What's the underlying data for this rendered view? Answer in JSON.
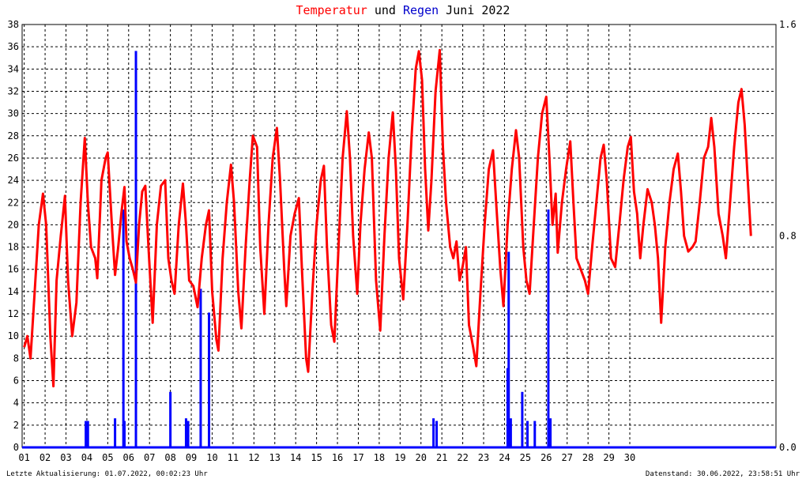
{
  "title": {
    "part1": "Temperatur",
    "part2": " und ",
    "part3": "Regen",
    "part4": " Juni 2022",
    "color_temp": "#ff0000",
    "color_rain": "#0000cc"
  },
  "footer": {
    "left": "Letzte Aktualisierung: 01.07.2022, 00:02:23 Uhr",
    "right": "Datenstand: 30.06.2022, 23:58:51 Uhr"
  },
  "chart_data": {
    "type": "line",
    "x_ticks": [
      "01",
      "02",
      "03",
      "04",
      "05",
      "06",
      "07",
      "08",
      "09",
      "10",
      "11",
      "12",
      "13",
      "14",
      "15",
      "16",
      "17",
      "18",
      "19",
      "20",
      "21",
      "22",
      "23",
      "24",
      "25",
      "26",
      "27",
      "28",
      "29",
      "30"
    ],
    "y_left": {
      "min": 0,
      "max": 38,
      "ticks": [
        0,
        2,
        4,
        6,
        8,
        10,
        12,
        14,
        16,
        18,
        20,
        22,
        24,
        26,
        28,
        30,
        32,
        34,
        36,
        38
      ]
    },
    "y_right": {
      "min": 0,
      "max": 1.6,
      "ticks": [
        "0.0",
        "0.8",
        "1.6"
      ]
    },
    "grid": true,
    "series": [
      {
        "name": "Temperatur",
        "color": "#ff0000",
        "axis": "left",
        "points": [
          [
            1.0,
            9.0
          ],
          [
            1.15,
            10.0
          ],
          [
            1.3,
            8.0
          ],
          [
            1.5,
            14
          ],
          [
            1.7,
            20
          ],
          [
            1.9,
            22.8
          ],
          [
            2.05,
            20
          ],
          [
            2.25,
            10
          ],
          [
            2.4,
            5.5
          ],
          [
            2.55,
            15
          ],
          [
            2.75,
            19
          ],
          [
            2.95,
            22.6
          ],
          [
            3.1,
            15
          ],
          [
            3.3,
            10
          ],
          [
            3.5,
            13
          ],
          [
            3.7,
            22
          ],
          [
            3.9,
            27.8
          ],
          [
            4.05,
            22
          ],
          [
            4.2,
            18
          ],
          [
            4.4,
            17
          ],
          [
            4.5,
            15.2
          ],
          [
            4.7,
            24
          ],
          [
            4.9,
            26
          ],
          [
            5.0,
            26.5
          ],
          [
            5.2,
            20
          ],
          [
            5.35,
            15.5
          ],
          [
            5.5,
            18
          ],
          [
            5.65,
            21
          ],
          [
            5.8,
            23.4
          ],
          [
            5.9,
            18.5
          ],
          [
            6.05,
            17
          ],
          [
            6.2,
            16
          ],
          [
            6.35,
            14.8
          ],
          [
            6.5,
            20
          ],
          [
            6.65,
            23
          ],
          [
            6.8,
            23.5
          ],
          [
            6.95,
            18
          ],
          [
            7.15,
            11.2
          ],
          [
            7.35,
            20
          ],
          [
            7.55,
            23.5
          ],
          [
            7.75,
            24
          ],
          [
            7.9,
            17
          ],
          [
            8.05,
            15
          ],
          [
            8.2,
            13.8
          ],
          [
            8.4,
            20
          ],
          [
            8.6,
            23.7
          ],
          [
            8.75,
            20
          ],
          [
            8.9,
            15
          ],
          [
            9.1,
            14.5
          ],
          [
            9.3,
            12.6
          ],
          [
            9.5,
            17
          ],
          [
            9.7,
            20
          ],
          [
            9.85,
            21.3
          ],
          [
            10.0,
            14
          ],
          [
            10.2,
            9.7
          ],
          [
            10.3,
            8.7
          ],
          [
            10.5,
            17
          ],
          [
            10.7,
            22
          ],
          [
            10.9,
            25.4
          ],
          [
            11.05,
            22
          ],
          [
            11.25,
            14
          ],
          [
            11.4,
            10.7
          ],
          [
            11.6,
            18
          ],
          [
            11.8,
            24
          ],
          [
            11.95,
            28
          ],
          [
            12.15,
            27
          ],
          [
            12.3,
            18
          ],
          [
            12.5,
            12
          ],
          [
            12.7,
            20
          ],
          [
            12.9,
            26
          ],
          [
            13.1,
            28.7
          ],
          [
            13.25,
            24
          ],
          [
            13.45,
            16
          ],
          [
            13.55,
            12.7
          ],
          [
            13.75,
            19
          ],
          [
            13.95,
            21
          ],
          [
            14.15,
            22.4
          ],
          [
            14.3,
            16
          ],
          [
            14.5,
            8
          ],
          [
            14.6,
            6.8
          ],
          [
            14.8,
            14
          ],
          [
            15.0,
            20
          ],
          [
            15.2,
            24
          ],
          [
            15.35,
            25.3
          ],
          [
            15.5,
            18
          ],
          [
            15.7,
            11
          ],
          [
            15.85,
            9.5
          ],
          [
            16.05,
            18
          ],
          [
            16.25,
            26
          ],
          [
            16.45,
            30.2
          ],
          [
            16.6,
            26
          ],
          [
            16.75,
            19
          ],
          [
            16.95,
            13.8
          ],
          [
            17.1,
            20
          ],
          [
            17.3,
            25
          ],
          [
            17.5,
            28.3
          ],
          [
            17.65,
            26
          ],
          [
            17.85,
            15
          ],
          [
            18.05,
            10.5
          ],
          [
            18.25,
            19
          ],
          [
            18.45,
            26
          ],
          [
            18.65,
            30.1
          ],
          [
            18.8,
            25
          ],
          [
            18.95,
            17
          ],
          [
            19.15,
            13.3
          ],
          [
            19.35,
            20
          ],
          [
            19.55,
            28
          ],
          [
            19.75,
            34
          ],
          [
            19.9,
            35.6
          ],
          [
            20.05,
            33
          ],
          [
            20.2,
            25
          ],
          [
            20.35,
            19.5
          ],
          [
            20.5,
            24
          ],
          [
            20.7,
            32
          ],
          [
            20.9,
            35.7
          ],
          [
            21.05,
            27
          ],
          [
            21.2,
            22
          ],
          [
            21.4,
            18
          ],
          [
            21.55,
            17
          ],
          [
            21.7,
            18.5
          ],
          [
            21.85,
            15
          ],
          [
            22.0,
            16.3
          ],
          [
            22.15,
            18
          ],
          [
            22.3,
            11
          ],
          [
            22.5,
            9
          ],
          [
            22.65,
            7.3
          ],
          [
            22.85,
            14
          ],
          [
            23.05,
            20
          ],
          [
            23.25,
            25
          ],
          [
            23.45,
            26.7
          ],
          [
            23.6,
            22
          ],
          [
            23.8,
            16
          ],
          [
            23.95,
            12.7
          ],
          [
            24.15,
            20
          ],
          [
            24.35,
            25
          ],
          [
            24.55,
            28.5
          ],
          [
            24.7,
            26
          ],
          [
            24.9,
            18
          ],
          [
            25.05,
            15
          ],
          [
            25.2,
            13.8
          ],
          [
            25.4,
            20
          ],
          [
            25.6,
            26
          ],
          [
            25.8,
            30
          ],
          [
            26.0,
            31.5
          ],
          [
            26.15,
            26
          ],
          [
            26.3,
            20
          ],
          [
            26.45,
            22.8
          ],
          [
            26.55,
            17.5
          ],
          [
            26.75,
            22
          ],
          [
            26.95,
            25
          ],
          [
            27.15,
            27.5
          ],
          [
            27.3,
            22
          ],
          [
            27.45,
            17
          ],
          [
            27.65,
            16
          ],
          [
            27.85,
            15
          ],
          [
            28.0,
            13.8
          ],
          [
            28.2,
            18
          ],
          [
            28.4,
            22
          ],
          [
            28.6,
            26
          ],
          [
            28.75,
            27.2
          ],
          [
            28.9,
            24
          ],
          [
            29.1,
            17
          ],
          [
            29.3,
            16.2
          ],
          [
            29.5,
            20
          ],
          [
            29.7,
            24
          ],
          [
            29.9,
            27
          ],
          [
            30.05,
            27.9
          ],
          [
            30.2,
            23
          ],
          [
            30.35,
            21
          ],
          [
            30.5,
            17
          ],
          [
            30.65,
            20
          ],
          [
            30.85,
            23.2
          ],
          [
            31.05,
            22
          ],
          [
            31.2,
            20
          ],
          [
            31.35,
            17
          ],
          [
            31.5,
            11.2
          ],
          [
            31.7,
            18
          ],
          [
            31.9,
            22
          ],
          [
            32.1,
            25
          ],
          [
            32.3,
            26.4
          ],
          [
            32.45,
            23
          ],
          [
            32.6,
            19
          ],
          [
            32.8,
            17.6
          ],
          [
            33.0,
            18
          ],
          [
            33.15,
            18.5
          ],
          [
            33.35,
            22
          ],
          [
            33.55,
            26
          ],
          [
            33.75,
            27
          ],
          [
            33.9,
            29.6
          ],
          [
            34.05,
            27
          ],
          [
            34.25,
            21
          ],
          [
            34.45,
            19
          ],
          [
            34.6,
            17
          ],
          [
            34.8,
            22
          ],
          [
            35.0,
            27
          ],
          [
            35.2,
            31
          ],
          [
            35.35,
            32.2
          ],
          [
            35.5,
            29
          ],
          [
            35.65,
            24
          ],
          [
            35.8,
            19
          ]
        ]
      },
      {
        "name": "Regen",
        "color": "#0000ff",
        "axis": "right",
        "bars": [
          [
            3.95,
            0.1
          ],
          [
            4.05,
            0.1
          ],
          [
            5.35,
            0.11
          ],
          [
            5.75,
            0.9
          ],
          [
            5.8,
            0.1
          ],
          [
            6.35,
            1.5
          ],
          [
            8.0,
            0.21
          ],
          [
            8.75,
            0.11
          ],
          [
            8.85,
            0.1
          ],
          [
            9.45,
            0.6
          ],
          [
            9.85,
            0.51
          ],
          [
            20.6,
            0.11
          ],
          [
            20.75,
            0.1
          ],
          [
            24.15,
            0.3
          ],
          [
            24.2,
            0.74
          ],
          [
            24.3,
            0.11
          ],
          [
            24.85,
            0.21
          ],
          [
            25.1,
            0.1
          ],
          [
            25.45,
            0.1
          ],
          [
            26.1,
            0.9
          ],
          [
            26.2,
            0.11
          ]
        ]
      }
    ],
    "x_range": [
      0.9,
      37.0
    ]
  }
}
